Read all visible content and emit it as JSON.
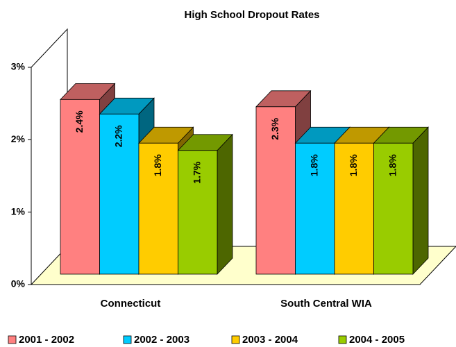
{
  "chart_data": {
    "type": "bar3d",
    "title": "High School Dropout Rates",
    "categories": [
      "Connecticut",
      "South Central WIA"
    ],
    "series": [
      {
        "name": "2001 - 2002",
        "color": "#FF8080",
        "values": [
          2.4,
          2.3
        ],
        "value_labels": [
          "2.4%",
          "2.3%"
        ]
      },
      {
        "name": "2002 - 2003",
        "color": "#00CCFF",
        "values": [
          2.2,
          1.8
        ],
        "value_labels": [
          "2.2%",
          "1.8%"
        ]
      },
      {
        "name": "2003 - 2004",
        "color": "#FFCC00",
        "values": [
          1.8,
          1.8
        ],
        "value_labels": [
          "1.8%",
          "1.8%"
        ]
      },
      {
        "name": "2004 - 2005",
        "color": "#99CC00",
        "values": [
          1.7,
          1.8
        ],
        "value_labels": [
          "1.7%",
          "1.8%"
        ]
      }
    ],
    "ylim": [
      0,
      3
    ],
    "yticks": [
      {
        "value": 0,
        "label": "0%"
      },
      {
        "value": 1,
        "label": "1%"
      },
      {
        "value": 2,
        "label": "2%"
      },
      {
        "value": 3,
        "label": "3%"
      }
    ],
    "grid": false,
    "legend": "bottom"
  }
}
